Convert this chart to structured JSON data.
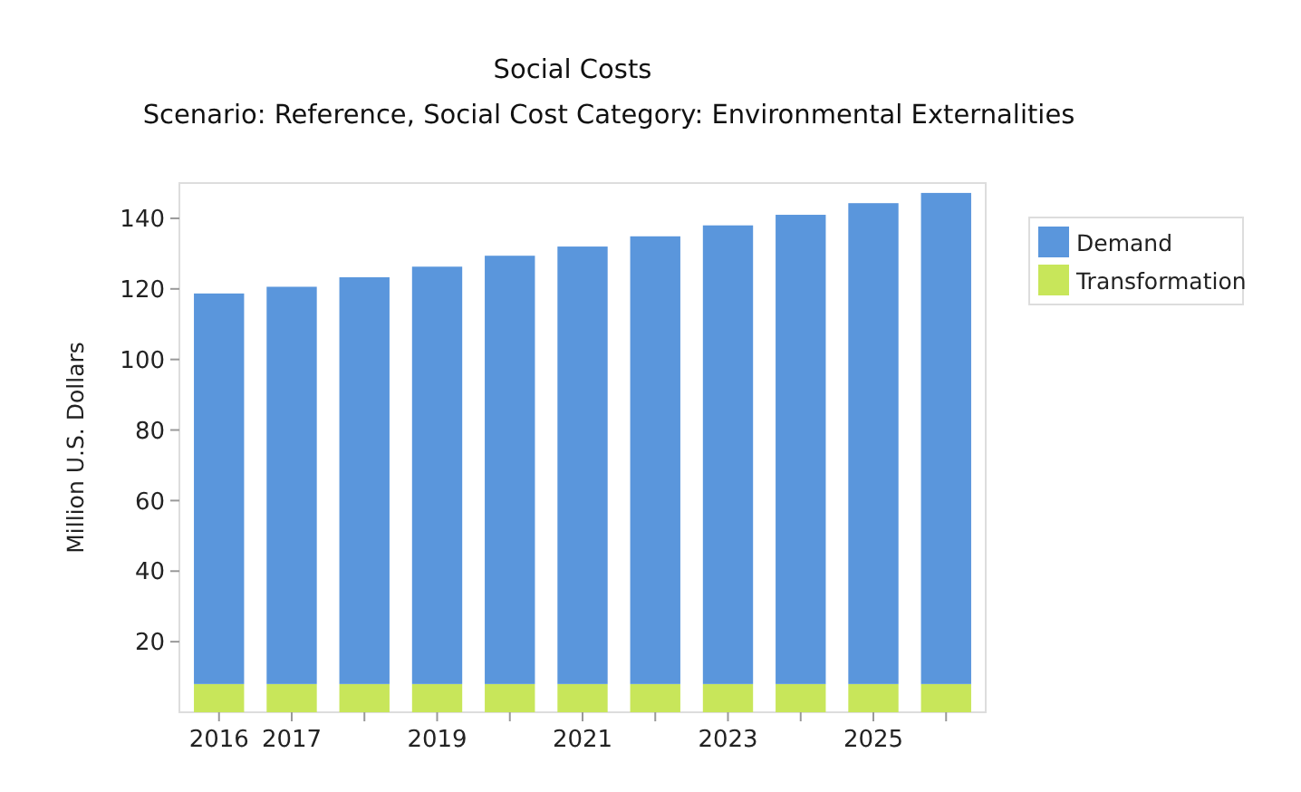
{
  "chart_data": {
    "type": "bar",
    "title": "Social Costs",
    "subtitle": "Scenario: Reference, Social Cost Category: Environmental Externalities",
    "ylabel": "Million U.S. Dollars",
    "categories": [
      "2016",
      "2017",
      null,
      "2019",
      null,
      "2021",
      null,
      "2023",
      null,
      "2025",
      null
    ],
    "stacked": true,
    "series": [
      {
        "name": "Transformation",
        "color": "#c8e65a",
        "values": [
          8,
          8,
          8,
          8,
          8,
          8,
          8,
          8,
          8,
          8,
          8
        ]
      },
      {
        "name": "Demand",
        "color": "#5a96dc",
        "values": [
          110.7,
          112.6,
          115.3,
          118.3,
          121.4,
          124,
          126.9,
          130,
          133,
          136.3,
          139.2
        ]
      }
    ],
    "ylim": [
      0,
      150
    ],
    "yticks": [
      20,
      40,
      60,
      80,
      100,
      120,
      140
    ],
    "legend": "right"
  }
}
